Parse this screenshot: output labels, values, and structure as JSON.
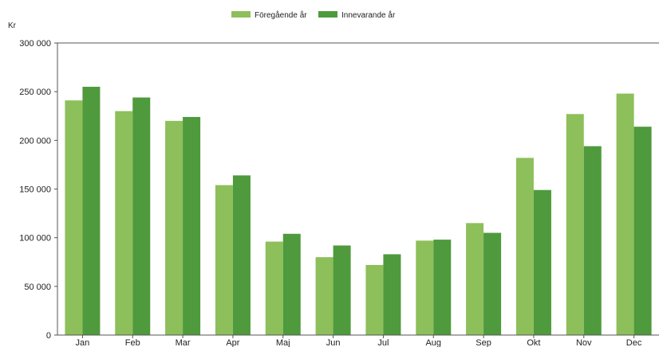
{
  "chart_data": {
    "type": "bar",
    "unit": "Kr",
    "categories": [
      "Jan",
      "Feb",
      "Mar",
      "Apr",
      "Maj",
      "Jun",
      "Jul",
      "Aug",
      "Sep",
      "Okt",
      "Nov",
      "Dec"
    ],
    "series": [
      {
        "name": "Föregående år",
        "color": "#8dbf5a",
        "values": [
          241000,
          230000,
          220000,
          154000,
          96000,
          80000,
          72000,
          97000,
          115000,
          182000,
          227000,
          248000
        ]
      },
      {
        "name": "Innevarande år",
        "color": "#4e9a3c",
        "values": [
          255000,
          244000,
          224000,
          164000,
          104000,
          92000,
          83000,
          98000,
          105000,
          149000,
          194000,
          214000
        ]
      }
    ],
    "ylim": [
      0,
      300000
    ],
    "yticks": [
      0,
      50000,
      100000,
      150000,
      200000,
      250000,
      300000
    ],
    "ytick_labels": [
      "0",
      "50 000",
      "100 000",
      "150 000",
      "200 000",
      "250 000",
      "300 000"
    ],
    "legend_position": "top-center",
    "grid": false
  }
}
